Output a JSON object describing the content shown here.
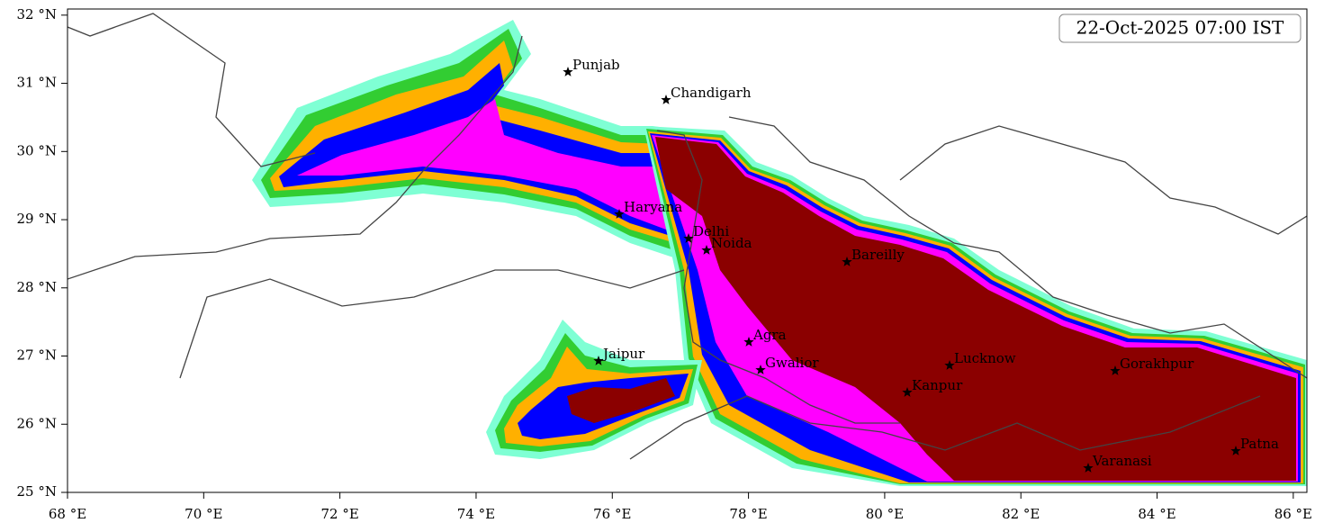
{
  "map": {
    "timestamp": "22-Oct-2025 07:00 IST",
    "xlim": [
      68,
      86.2
    ],
    "ylim": [
      25,
      32.09
    ],
    "xticks": [
      {
        "value": 68,
        "label": "68 °E"
      },
      {
        "value": 70,
        "label": "70 °E"
      },
      {
        "value": 72,
        "label": "72 °E"
      },
      {
        "value": 74,
        "label": "74 °E"
      },
      {
        "value": 76,
        "label": "76 °E"
      },
      {
        "value": 78,
        "label": "78 °E"
      },
      {
        "value": 80,
        "label": "80 °E"
      },
      {
        "value": 82,
        "label": "82 °E"
      },
      {
        "value": 84,
        "label": "84 °E"
      },
      {
        "value": 86,
        "label": "86 °E"
      }
    ],
    "yticks": [
      {
        "value": 25,
        "label": "25 °N"
      },
      {
        "value": 26,
        "label": "26 °N"
      },
      {
        "value": 27,
        "label": "27 °N"
      },
      {
        "value": 28,
        "label": "28 °N"
      },
      {
        "value": 29,
        "label": "29 °N"
      },
      {
        "value": 30,
        "label": "30 °N"
      },
      {
        "value": 31,
        "label": "31 °N"
      },
      {
        "value": 32,
        "label": "32 °N"
      }
    ],
    "cities": [
      "Punjab",
      "Chandigarh",
      "Haryana",
      "Delhi",
      "Noida",
      "Bareilly",
      "Agra",
      "Jaipur",
      "Gwalior",
      "Lucknow",
      "Gorakhpur",
      "Kanpur",
      "Varanasi",
      "Patna"
    ]
  }
}
